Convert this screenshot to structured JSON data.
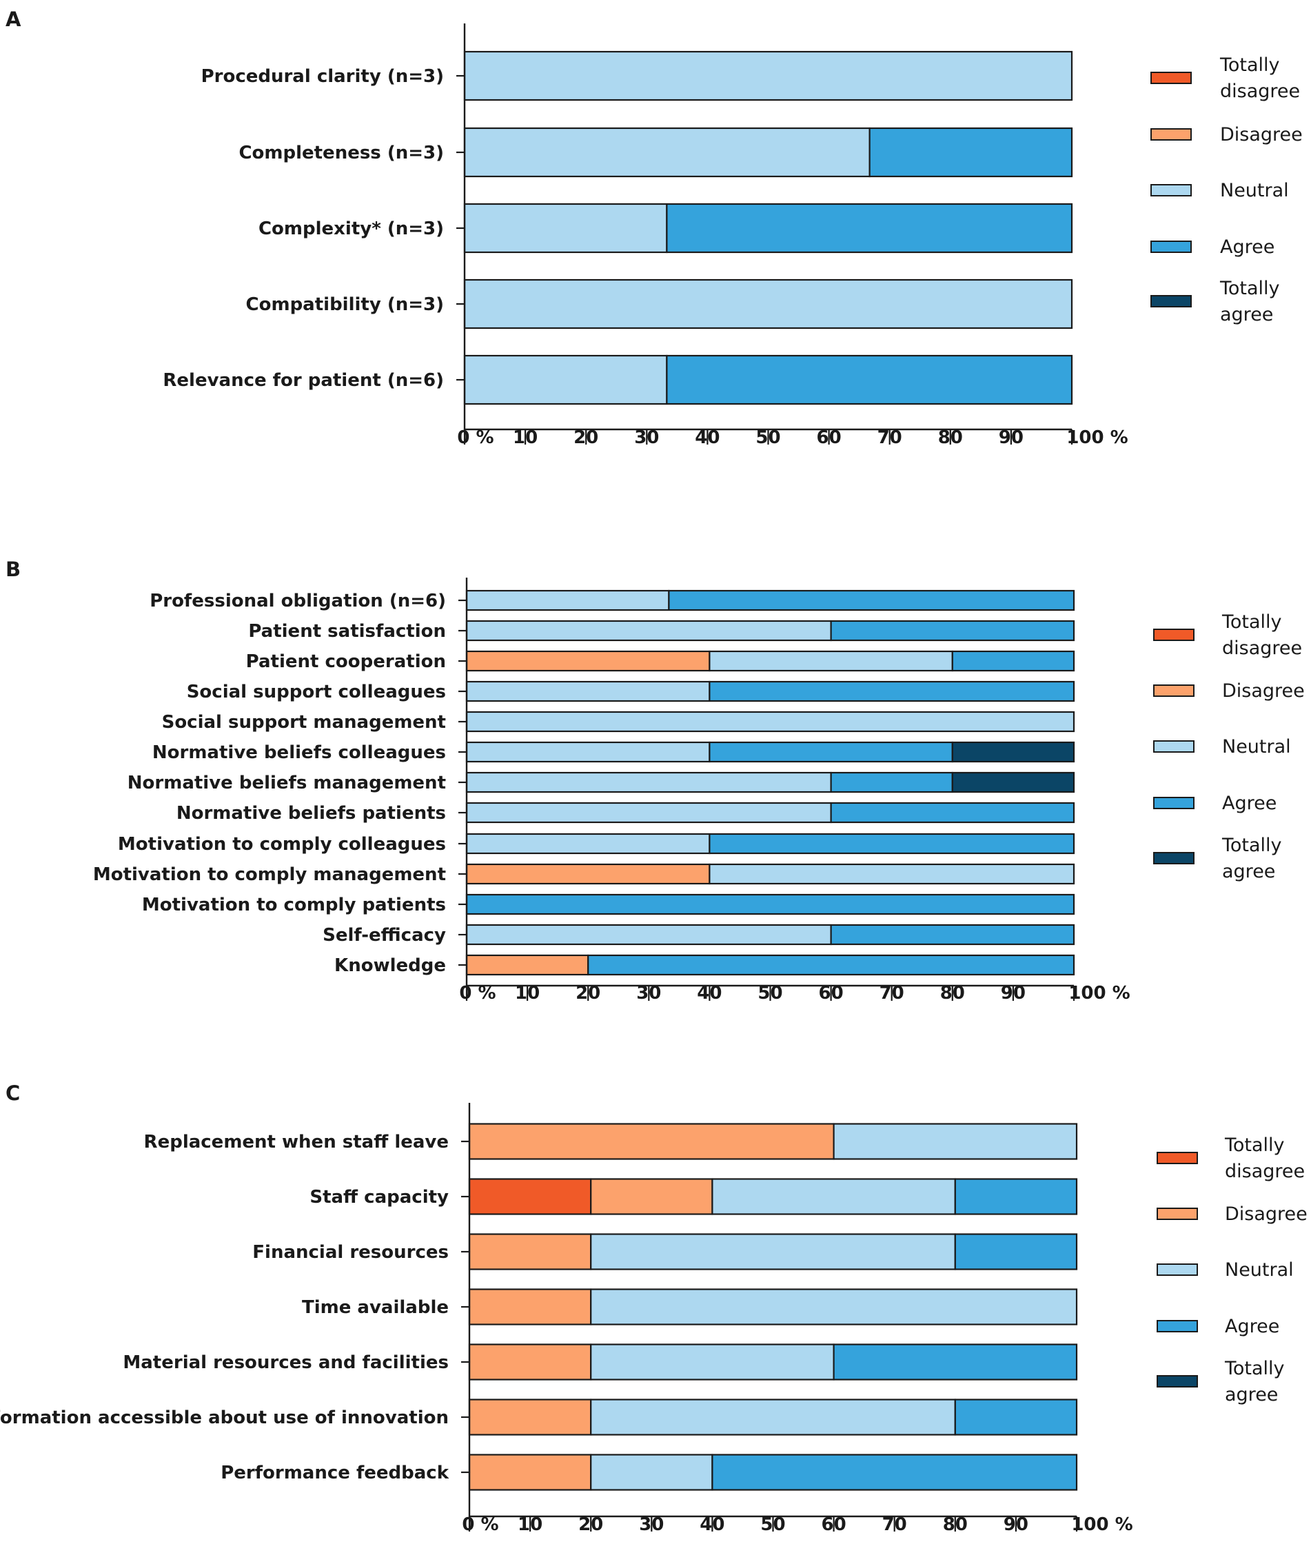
{
  "colors": {
    "Totally disagree": "#F05A28",
    "Disagree": "#FCA26C",
    "Neutral": "#ADD8F0",
    "Agree": "#35A3DC",
    "Totally agree": "#0B4566",
    "outline": "#1a1a1a"
  },
  "chart_data": [
    {
      "type": "bar",
      "orientation": "horizontal",
      "stacked": true,
      "panel_label": "A",
      "categories": [
        "Procedural clarity (n=3)",
        "Completeness (n=3)",
        "Complexity* (n=3)",
        "Compatibility (n=3)",
        "Relevance for patient (n=6)"
      ],
      "series": [
        {
          "name": "Totally disagree",
          "values": [
            0,
            0,
            0,
            0,
            0
          ]
        },
        {
          "name": "Disagree",
          "values": [
            0,
            0,
            0,
            0,
            0
          ]
        },
        {
          "name": "Neutral",
          "values": [
            100,
            66.7,
            33.3,
            100,
            33.3
          ]
        },
        {
          "name": "Agree",
          "values": [
            0,
            33.3,
            66.7,
            0,
            66.7
          ]
        },
        {
          "name": "Totally agree",
          "values": [
            0,
            0,
            0,
            0,
            0
          ]
        }
      ],
      "xlim": [
        0,
        100
      ],
      "xticks": [
        "0 %",
        "10",
        "20",
        "30",
        "40",
        "50",
        "60",
        "70",
        "80",
        "90",
        "100 %"
      ],
      "legend": [
        [
          "Totally",
          "disagree"
        ],
        [
          "Disagree"
        ],
        [
          "Neutral"
        ],
        [
          "Agree"
        ],
        [
          "Totally",
          "agree"
        ]
      ],
      "legend_position": "right"
    },
    {
      "type": "bar",
      "orientation": "horizontal",
      "stacked": true,
      "panel_label": "B",
      "categories": [
        "Professional obligation (n=6)",
        "Patient satisfaction",
        "Patient cooperation",
        "Social support colleagues",
        "Social support management",
        "Normative beliefs colleagues",
        "Normative beliefs management",
        "Normative beliefs patients",
        "Motivation to comply colleagues",
        "Motivation to comply management",
        "Motivation to comply patients",
        "Self-efficacy",
        "Knowledge"
      ],
      "series": [
        {
          "name": "Totally disagree",
          "values": [
            0,
            0,
            0,
            0,
            0,
            0,
            0,
            0,
            0,
            0,
            0,
            0,
            0
          ]
        },
        {
          "name": "Disagree",
          "values": [
            0,
            0,
            40,
            0,
            0,
            0,
            0,
            0,
            0,
            40,
            0,
            0,
            20
          ]
        },
        {
          "name": "Neutral",
          "values": [
            33.3,
            60,
            40,
            40,
            100,
            40,
            60,
            60,
            40,
            60,
            0,
            60,
            0
          ]
        },
        {
          "name": "Agree",
          "values": [
            66.7,
            40,
            20,
            60,
            0,
            40,
            20,
            40,
            60,
            0,
            100,
            40,
            80
          ]
        },
        {
          "name": "Totally agree",
          "values": [
            0,
            0,
            0,
            0,
            0,
            20,
            20,
            0,
            0,
            0,
            0,
            0,
            0
          ]
        }
      ],
      "xlim": [
        0,
        100
      ],
      "xticks": [
        "0 %",
        "10",
        "20",
        "30",
        "40",
        "50",
        "60",
        "70",
        "80",
        "90",
        "100 %"
      ],
      "legend": [
        [
          "Totally",
          "disagree"
        ],
        [
          "Disagree"
        ],
        [
          "Neutral"
        ],
        [
          "Agree"
        ],
        [
          "Totally",
          "agree"
        ]
      ],
      "legend_position": "right"
    },
    {
      "type": "bar",
      "orientation": "horizontal",
      "stacked": true,
      "panel_label": "C",
      "categories": [
        "Replacement when staff leave",
        "Staff capacity",
        "Financial resources",
        "Time available",
        "Material resources and facilities",
        "Information accessible about use of innovation",
        "Performance feedback"
      ],
      "series": [
        {
          "name": "Totally disagree",
          "values": [
            0,
            20,
            0,
            0,
            0,
            0,
            0
          ]
        },
        {
          "name": "Disagree",
          "values": [
            60,
            20,
            20,
            20,
            20,
            20,
            20
          ]
        },
        {
          "name": "Neutral",
          "values": [
            40,
            40,
            60,
            80,
            40,
            60,
            20
          ]
        },
        {
          "name": "Agree",
          "values": [
            0,
            20,
            20,
            0,
            40,
            20,
            60
          ]
        },
        {
          "name": "Totally agree",
          "values": [
            0,
            0,
            0,
            0,
            0,
            0,
            0
          ]
        }
      ],
      "xlim": [
        0,
        100
      ],
      "xticks": [
        "0 %",
        "10",
        "20",
        "30",
        "40",
        "50",
        "60",
        "70",
        "80",
        "90",
        "100 %"
      ],
      "legend": [
        [
          "Totally",
          "disagree"
        ],
        [
          "Disagree"
        ],
        [
          "Neutral"
        ],
        [
          "Agree"
        ],
        [
          "Totally",
          "agree"
        ]
      ],
      "legend_position": "right"
    }
  ]
}
